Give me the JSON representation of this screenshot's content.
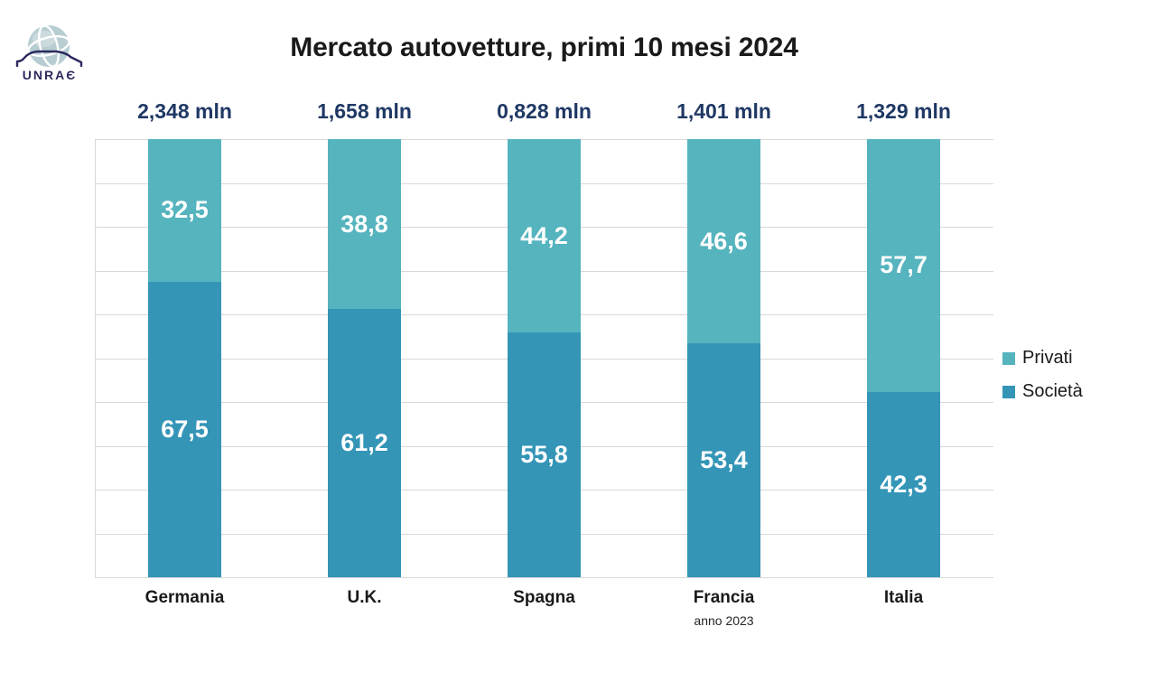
{
  "logo": {
    "text": "UNRAЄ"
  },
  "chart_data": {
    "type": "bar",
    "stacked": true,
    "title": "Mercato autovetture, primi 10 mesi 2024",
    "categories": [
      "Germania",
      "U.K.",
      "Spagna",
      "Francia",
      "Italia"
    ],
    "totals": [
      "2,348 mln",
      "1,658 mln",
      "0,828 mln",
      "1,401 mln",
      "1,329 mln"
    ],
    "series": [
      {
        "name": "Privati",
        "color": "#55B4BE",
        "values": [
          32.5,
          38.8,
          44.2,
          46.6,
          57.7
        ],
        "labels": [
          "32,5",
          "38,8",
          "44,2",
          "46,6",
          "57,7"
        ]
      },
      {
        "name": "Società",
        "color": "#3495B7",
        "values": [
          67.5,
          61.2,
          55.8,
          53.4,
          42.3
        ],
        "labels": [
          "67,5",
          "61,2",
          "55,8",
          "53,4",
          "42,3"
        ]
      }
    ],
    "ylim": [
      0,
      100
    ],
    "grid": {
      "horizontal": true,
      "interval": 10,
      "color": "#D8D8D8"
    },
    "legend": {
      "position": "right",
      "items": [
        "Privati",
        "Società"
      ]
    },
    "footnote": {
      "text": "anno 2023",
      "under_category": "Francia"
    },
    "value_label_color": "#FFFFFF",
    "total_label_color": "#1F3864"
  }
}
